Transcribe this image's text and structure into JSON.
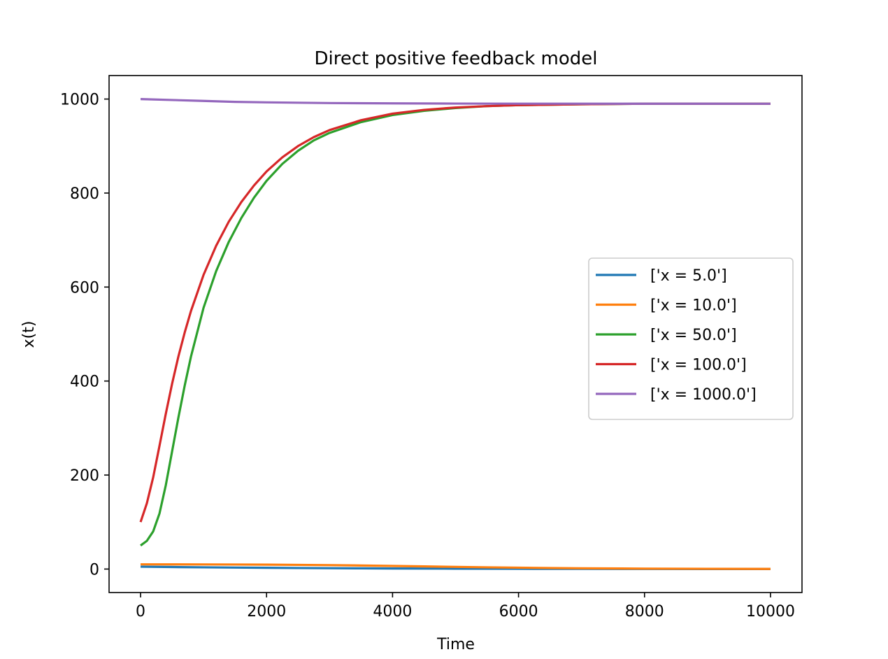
{
  "chart_data": {
    "type": "line",
    "title": "Direct positive feedback model",
    "xlabel": "Time",
    "ylabel": "x(t)",
    "xlim": [
      -500,
      10500
    ],
    "ylim": [
      -50,
      1050
    ],
    "xticks": [
      0,
      2000,
      4000,
      6000,
      8000,
      10000
    ],
    "yticks": [
      0,
      200,
      400,
      600,
      800,
      1000
    ],
    "grid": false,
    "legend_position": "center-right",
    "series": [
      {
        "name": "['x = 5.0']",
        "color": "#1f77b4",
        "points": [
          [
            0,
            5
          ],
          [
            500,
            4.3
          ],
          [
            1000,
            3.7
          ],
          [
            1500,
            3.1
          ],
          [
            2000,
            2.6
          ],
          [
            2500,
            2.2
          ],
          [
            3000,
            1.8
          ],
          [
            3500,
            1.5
          ],
          [
            4000,
            1.2
          ],
          [
            5000,
            0.8
          ],
          [
            6000,
            0.5
          ],
          [
            7000,
            0.3
          ],
          [
            8000,
            0.2
          ],
          [
            9000,
            0.1
          ],
          [
            10000,
            0.05
          ]
        ]
      },
      {
        "name": "['x = 10.0']",
        "color": "#ff7f0e",
        "points": [
          [
            0,
            10
          ],
          [
            500,
            9.9
          ],
          [
            1000,
            9.8
          ],
          [
            1500,
            9.6
          ],
          [
            2000,
            9.3
          ],
          [
            2500,
            8.9
          ],
          [
            3000,
            8.3
          ],
          [
            3500,
            7.5
          ],
          [
            4000,
            6.6
          ],
          [
            4500,
            5.6
          ],
          [
            5000,
            4.6
          ],
          [
            5500,
            3.7
          ],
          [
            6000,
            2.9
          ],
          [
            6500,
            2.2
          ],
          [
            7000,
            1.6
          ],
          [
            8000,
            0.9
          ],
          [
            9000,
            0.5
          ],
          [
            10000,
            0.2
          ]
        ]
      },
      {
        "name": "['x = 50.0']",
        "color": "#2ca02c",
        "points": [
          [
            0,
            50
          ],
          [
            100,
            60
          ],
          [
            200,
            80
          ],
          [
            300,
            118
          ],
          [
            400,
            178
          ],
          [
            500,
            250
          ],
          [
            600,
            322
          ],
          [
            700,
            390
          ],
          [
            800,
            452
          ],
          [
            1000,
            556
          ],
          [
            1200,
            634
          ],
          [
            1400,
            696
          ],
          [
            1600,
            747
          ],
          [
            1800,
            790
          ],
          [
            2000,
            826
          ],
          [
            2250,
            862
          ],
          [
            2500,
            890
          ],
          [
            2750,
            912
          ],
          [
            3000,
            928
          ],
          [
            3500,
            951
          ],
          [
            4000,
            966
          ],
          [
            4500,
            975
          ],
          [
            5000,
            981
          ],
          [
            5500,
            985
          ],
          [
            6000,
            987
          ],
          [
            7000,
            989
          ],
          [
            8000,
            990
          ],
          [
            9000,
            990
          ],
          [
            10000,
            990
          ]
        ]
      },
      {
        "name": "['x = 100.0']",
        "color": "#d62728",
        "points": [
          [
            0,
            100
          ],
          [
            100,
            140
          ],
          [
            200,
            195
          ],
          [
            300,
            262
          ],
          [
            400,
            330
          ],
          [
            500,
            394
          ],
          [
            600,
            452
          ],
          [
            700,
            503
          ],
          [
            800,
            549
          ],
          [
            1000,
            626
          ],
          [
            1200,
            688
          ],
          [
            1400,
            739
          ],
          [
            1600,
            781
          ],
          [
            1800,
            816
          ],
          [
            2000,
            846
          ],
          [
            2250,
            876
          ],
          [
            2500,
            900
          ],
          [
            2750,
            919
          ],
          [
            3000,
            934
          ],
          [
            3500,
            955
          ],
          [
            4000,
            969
          ],
          [
            4500,
            977
          ],
          [
            5000,
            982
          ],
          [
            5500,
            985
          ],
          [
            6000,
            987
          ],
          [
            7000,
            989
          ],
          [
            8000,
            990
          ],
          [
            9000,
            990
          ],
          [
            10000,
            990
          ]
        ]
      },
      {
        "name": "['x = 1000.0']",
        "color": "#9467bd",
        "points": [
          [
            0,
            1000
          ],
          [
            500,
            998
          ],
          [
            1000,
            996
          ],
          [
            1500,
            994
          ],
          [
            2000,
            993
          ],
          [
            3000,
            991.5
          ],
          [
            4000,
            990.8
          ],
          [
            5000,
            990.4
          ],
          [
            6000,
            990.2
          ],
          [
            8000,
            990.1
          ],
          [
            10000,
            990
          ]
        ]
      }
    ]
  }
}
